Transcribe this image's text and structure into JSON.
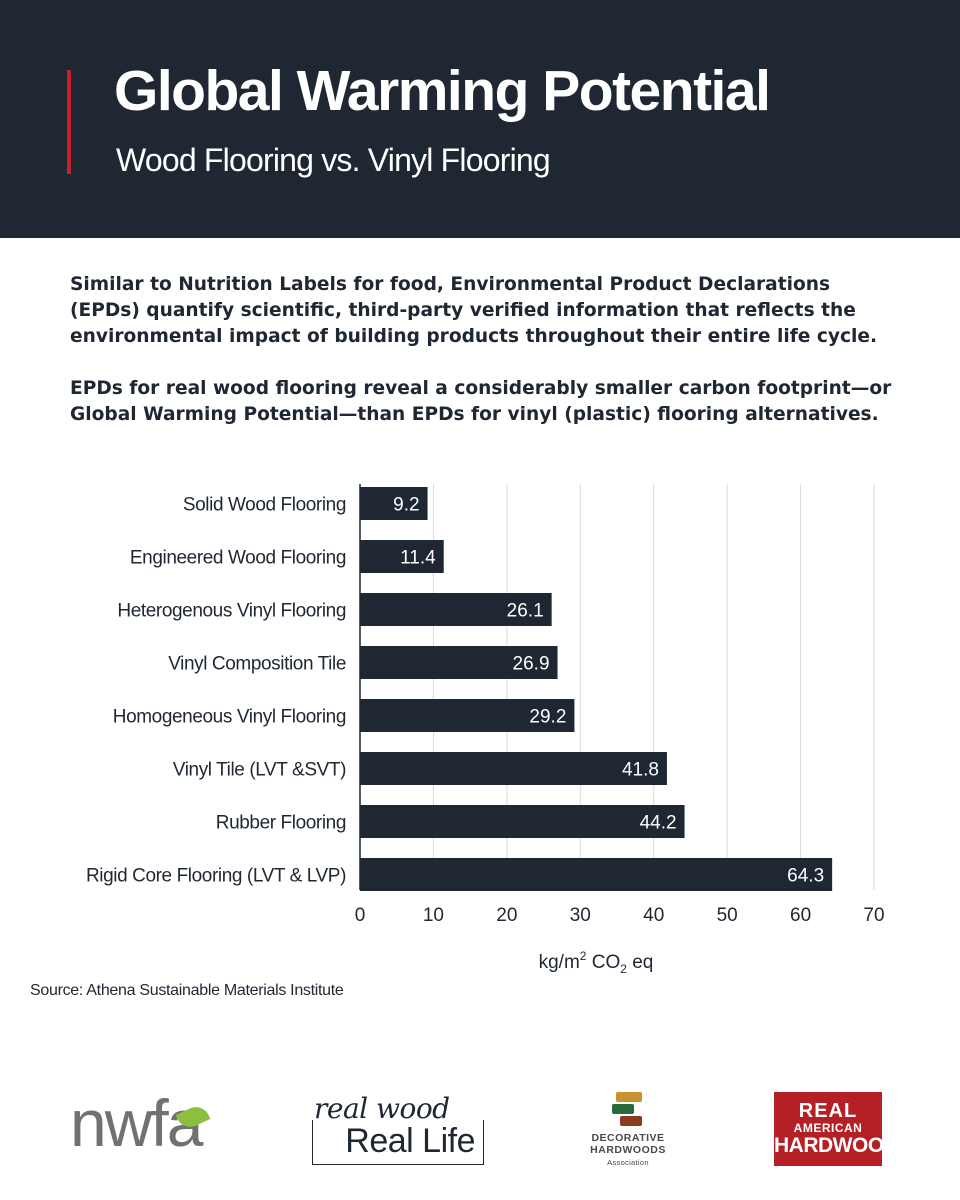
{
  "header": {
    "title": "Global Warming Potential",
    "subtitle": "Wood Flooring vs. Vinyl Flooring",
    "accent_color": "#c8202e",
    "background_color": "#1f2733"
  },
  "intro": {
    "paragraph_1": "Similar to Nutrition Labels for food, Environmental Product Declarations (EPDs) quantify scientific, third-party verified information that reflects the environmental impact of building products throughout their entire life cycle.",
    "paragraph_2": "EPDs for real wood flooring reveal a considerably smaller carbon footprint—or Global Warming Potential—than EPDs for vinyl (plastic) flooring alternatives."
  },
  "chart_data": {
    "type": "bar",
    "orientation": "horizontal",
    "categories": [
      "Solid Wood Flooring",
      "Engineered Wood Flooring",
      "Heterogenous Vinyl Flooring",
      "Vinyl Composition Tile",
      "Homogeneous Vinyl Flooring",
      "Vinyl Tile (LVT &SVT)",
      "Rubber Flooring",
      "Rigid Core Flooring (LVT & LVP)"
    ],
    "values": [
      9.2,
      11.4,
      26.1,
      26.9,
      29.2,
      41.8,
      44.2,
      64.3
    ],
    "value_labels": [
      "9.2",
      "11.4",
      "26.1",
      "26.9",
      "29.2",
      "41.8",
      "44.2",
      "64.3"
    ],
    "xlim": [
      0,
      70
    ],
    "xticks": [
      0,
      10,
      20,
      30,
      40,
      50,
      60,
      70
    ],
    "xlabel": {
      "base": "kg/m",
      "sup": "2",
      "mid": " CO",
      "sub": "2",
      "end": " eq"
    },
    "bar_color": "#1f2733",
    "grid": "vertical",
    "grid_color": "#d9d9d9"
  },
  "source": "Source: Athena Sustainable Materials Institute",
  "logos": {
    "nwfa": "nwfa",
    "rwrl_script": "real wood",
    "rwrl_text": "Real Life",
    "dha_line1": "DECORATIVE",
    "dha_line2": "HARDWOODS",
    "dha_line3": "Association",
    "rah_line1": "REAL",
    "rah_line2": "AMERICAN",
    "rah_line3": "HARDWOOD."
  }
}
